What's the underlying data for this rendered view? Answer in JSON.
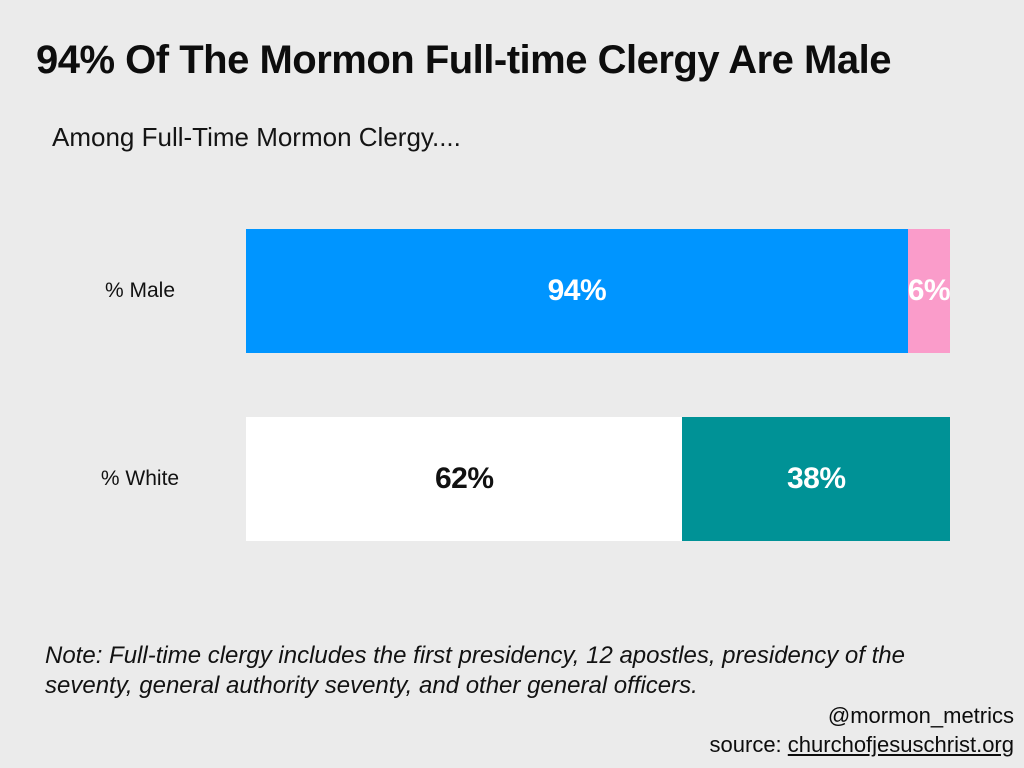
{
  "header": {
    "title": "94% Of The Mormon Full-time Clergy Are Male",
    "subtitle": "Among Full-Time Mormon Clergy...."
  },
  "chart_data": {
    "type": "bar",
    "orientation": "horizontal_stacked",
    "title": "94% Of The Mormon Full-time Clergy Are Male",
    "subtitle": "Among Full-Time Mormon Clergy....",
    "categories": [
      "% Male",
      "% White"
    ],
    "xlim": [
      0,
      100
    ],
    "grid": false,
    "legend": "none",
    "background": "#EBEBEB",
    "rows": [
      {
        "label": "% Male",
        "segments": [
          {
            "value": 94,
            "display": "94%",
            "color": "#0095FF",
            "text_color": "#FFFFFF"
          },
          {
            "value": 6,
            "display": "6%",
            "color": "#FA9CCA",
            "text_color": "#FFFFFF"
          }
        ]
      },
      {
        "label": "% White",
        "segments": [
          {
            "value": 62,
            "display": "62%",
            "color": "#FFFFFF",
            "text_color": "#111111"
          },
          {
            "value": 38,
            "display": "38%",
            "color": "#009296",
            "text_color": "#FFFFFF"
          }
        ]
      }
    ]
  },
  "footer": {
    "note": "Note: Full-time clergy includes the first presidency, 12 apostles, presidency of the seventy, general authority seventy, and other general officers.",
    "handle": "@mormon_metrics",
    "source_prefix": "source: ",
    "source_link": "churchofjesuschrist.org"
  }
}
